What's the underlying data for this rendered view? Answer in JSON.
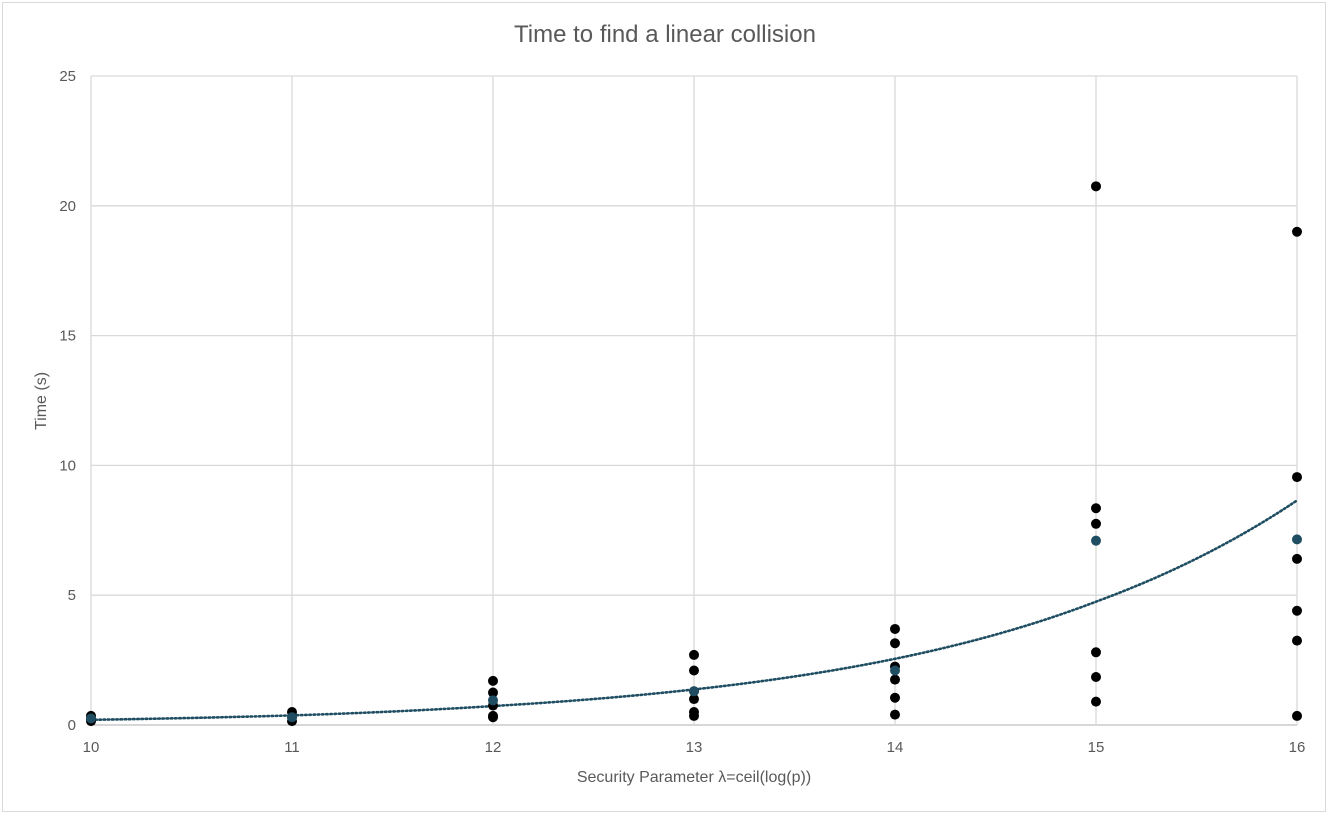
{
  "chart_data": {
    "type": "scatter",
    "title": "Time to find a linear collision",
    "xlabel": "Security Parameter λ=ceil(log(p))",
    "ylabel": "Time (s)",
    "xlim": [
      10,
      16
    ],
    "ylim": [
      0,
      25
    ],
    "x_ticks": [
      "10",
      "11",
      "12",
      "13",
      "14",
      "15",
      "16"
    ],
    "y_ticks": [
      "0",
      "5",
      "10",
      "15",
      "20",
      "25"
    ],
    "grid": true,
    "series": [
      {
        "role": "individual runs",
        "color": "#000000",
        "points": [
          {
            "x": 10,
            "y": 0.35
          },
          {
            "x": 10,
            "y": 0.25
          },
          {
            "x": 10,
            "y": 0.15
          },
          {
            "x": 11,
            "y": 0.5
          },
          {
            "x": 11,
            "y": 0.3
          },
          {
            "x": 11,
            "y": 0.15
          },
          {
            "x": 12,
            "y": 1.7
          },
          {
            "x": 12,
            "y": 1.25
          },
          {
            "x": 12,
            "y": 0.75
          },
          {
            "x": 12,
            "y": 0.35
          },
          {
            "x": 12,
            "y": 0.3
          },
          {
            "x": 13,
            "y": 2.7
          },
          {
            "x": 13,
            "y": 2.1
          },
          {
            "x": 13,
            "y": 1.3
          },
          {
            "x": 13,
            "y": 1.0
          },
          {
            "x": 13,
            "y": 0.5
          },
          {
            "x": 13,
            "y": 0.35
          },
          {
            "x": 14,
            "y": 3.7
          },
          {
            "x": 14,
            "y": 3.15
          },
          {
            "x": 14,
            "y": 2.25
          },
          {
            "x": 14,
            "y": 1.75
          },
          {
            "x": 14,
            "y": 1.05
          },
          {
            "x": 14,
            "y": 0.4
          },
          {
            "x": 15,
            "y": 20.75
          },
          {
            "x": 15,
            "y": 8.35
          },
          {
            "x": 15,
            "y": 7.75
          },
          {
            "x": 15,
            "y": 2.8
          },
          {
            "x": 15,
            "y": 1.85
          },
          {
            "x": 15,
            "y": 0.9
          },
          {
            "x": 16,
            "y": 19.0
          },
          {
            "x": 16,
            "y": 9.55
          },
          {
            "x": 16,
            "y": 6.4
          },
          {
            "x": 16,
            "y": 4.4
          },
          {
            "x": 16,
            "y": 3.25
          },
          {
            "x": 16,
            "y": 0.35
          }
        ]
      },
      {
        "role": "average",
        "color": "#1f4e62",
        "points": [
          {
            "x": 10,
            "y": 0.25
          },
          {
            "x": 11,
            "y": 0.3
          },
          {
            "x": 12,
            "y": 0.95
          },
          {
            "x": 13,
            "y": 1.3
          },
          {
            "x": 14,
            "y": 2.1
          },
          {
            "x": 15,
            "y": 7.1
          },
          {
            "x": 16,
            "y": 7.15
          }
        ]
      }
    ],
    "trendline": {
      "type": "exponential",
      "style": "dotted",
      "color": "#1f4e62",
      "points": [
        {
          "x": 10,
          "y": 0.2
        },
        {
          "x": 11,
          "y": 0.37
        },
        {
          "x": 12,
          "y": 0.73
        },
        {
          "x": 13,
          "y": 1.37
        },
        {
          "x": 14,
          "y": 2.55
        },
        {
          "x": 15,
          "y": 4.75
        },
        {
          "x": 16,
          "y": 8.65
        }
      ]
    }
  }
}
